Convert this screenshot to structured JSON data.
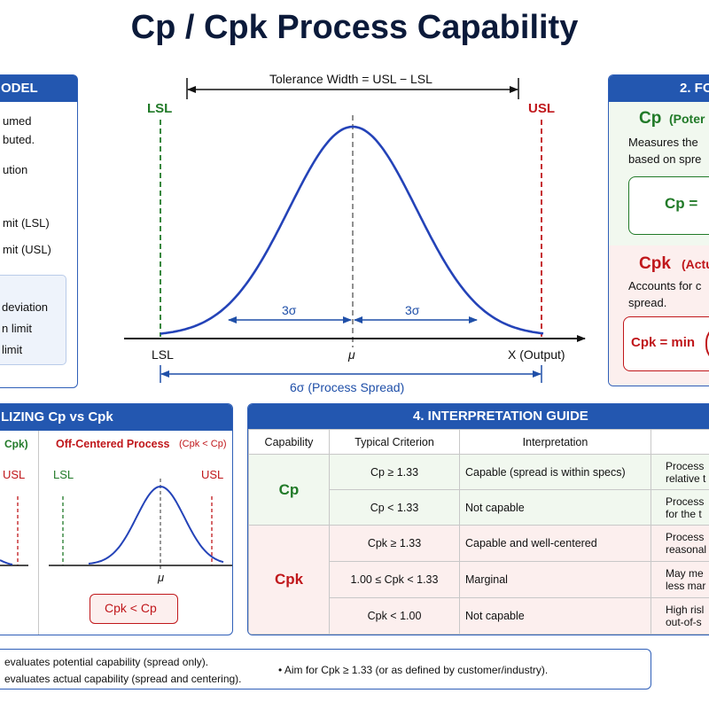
{
  "title": "Cp / Cpk Process Capability",
  "model_panel": {
    "header": "ODEL",
    "lines": [
      "umed",
      "buted.",
      "ution",
      "mit (LSL)",
      "mit (USL)"
    ],
    "box_lines": [
      "deviation",
      "n limit",
      "limit"
    ]
  },
  "main_diagram": {
    "tolerance_label": "Tolerance Width = USL − LSL",
    "lsl_top": "LSL",
    "usl_top": "USL",
    "sigma_left": "3σ",
    "sigma_right": "3σ",
    "lsl_axis": "LSL",
    "mu": "μ",
    "x_axis": "X (Output)",
    "spread_label": "6σ (Process Spread)"
  },
  "formula_panel": {
    "header": "2. FO",
    "cp_title": "Cp",
    "cp_sub": "(Poter",
    "cp_desc": [
      "Measures the",
      "based on spre"
    ],
    "cp_formula": "Cp =",
    "cpk_title": "Cpk",
    "cpk_sub": "(Actu",
    "cpk_desc": [
      "Accounts for c",
      "spread."
    ],
    "cpk_formula": "Cpk = min"
  },
  "visual_panel": {
    "header": "LIZING Cp vs Cpk",
    "left_label": "Cpk)",
    "usl_left": "USL",
    "right_title": "Off-Centered Process",
    "right_sub": "(Cpk < Cp)",
    "lsl": "LSL",
    "usl": "USL",
    "mu": "μ",
    "badge": "Cpk < Cp"
  },
  "guide": {
    "header": "4.  INTERPRETATION GUIDE",
    "columns": [
      "Capability",
      "Typical Criterion",
      "Interpretation",
      ""
    ],
    "cp_label": "Cp",
    "cpk_label": "Cpk",
    "rows": [
      {
        "criterion": "Cp  ≥  1.33",
        "interp": "Capable (spread is within specs)",
        "extra": [
          "Process",
          "relative t"
        ]
      },
      {
        "criterion": "Cp  <  1.33",
        "interp": "Not capable",
        "extra": [
          "Process",
          "for the t"
        ]
      },
      {
        "criterion": "Cpk  ≥  1.33",
        "interp": "Capable and well-centered",
        "extra": [
          "Process",
          "reasonal"
        ]
      },
      {
        "criterion": "1.00  ≤  Cpk  <  1.33",
        "interp": "Marginal",
        "extra": [
          "May me",
          "less mar"
        ]
      },
      {
        "criterion": "Cpk  <  1.00",
        "interp": "Not capable",
        "extra": [
          "High risl",
          "out-of-s"
        ]
      }
    ]
  },
  "footer": {
    "line1": "evaluates potential capability (spread only).",
    "line2": "evaluates actual capability (spread and centering).",
    "right": "•  Aim for Cpk  ≥  1.33 (or as defined by customer/industry)."
  },
  "colors": {
    "blue": "#2357b0",
    "red": "#c0171b",
    "green": "#217a28",
    "curve": "#2443b8"
  }
}
